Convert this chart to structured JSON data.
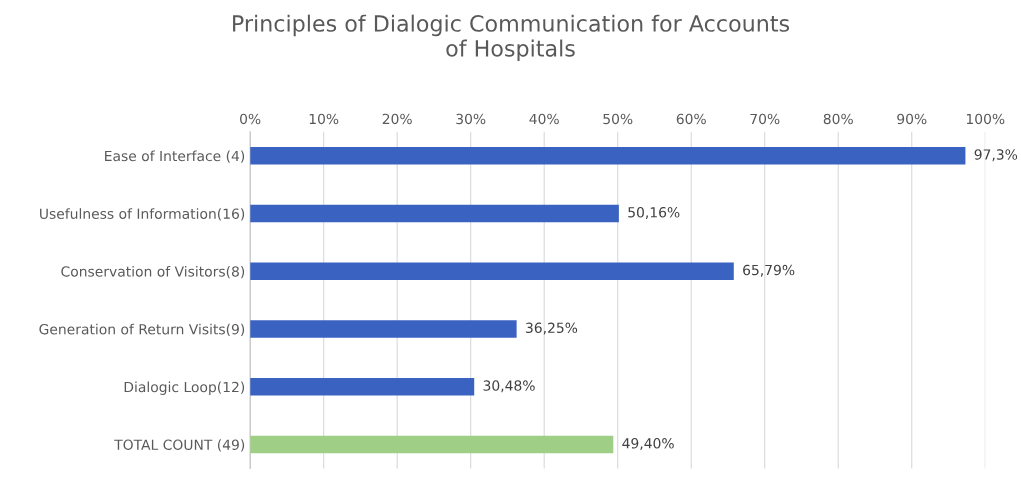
{
  "chart_data": {
    "type": "bar",
    "orientation": "horizontal",
    "title": "Principles of Dialogic Communication for Accounts\nof Hospitals",
    "categories": [
      "Ease of Interface (4)",
      "Usefulness of Information(16)",
      "Conservation of Visitors(8)",
      "Generation of Return Visits(9)",
      "Dialogic Loop(12)",
      "TOTAL COUNT (49)"
    ],
    "values": [
      97.3,
      50.16,
      65.79,
      36.25,
      30.48,
      49.4
    ],
    "colors": [
      "#3a62c0",
      "#3a62c0",
      "#3a62c0",
      "#3a62c0",
      "#3a62c0",
      "#9fcf87"
    ],
    "value_labels": [
      "97,3%",
      "50,16%",
      "65,79%",
      "36,25%",
      "30,48%",
      "49,40%"
    ],
    "xlim": [
      0,
      100
    ],
    "xticks": [
      {
        "value": 0,
        "label": "0%"
      },
      {
        "value": 10,
        "label": "10%"
      },
      {
        "value": 20,
        "label": "20%"
      },
      {
        "value": 30,
        "label": "30%"
      },
      {
        "value": 40,
        "label": "40%"
      },
      {
        "value": 50,
        "label": "50%"
      },
      {
        "value": 60,
        "label": "60%"
      },
      {
        "value": 70,
        "label": "70%"
      },
      {
        "value": 80,
        "label": "80%"
      },
      {
        "value": 90,
        "label": "90%"
      },
      {
        "value": 100,
        "label": "100%"
      }
    ],
    "grid": "x"
  }
}
